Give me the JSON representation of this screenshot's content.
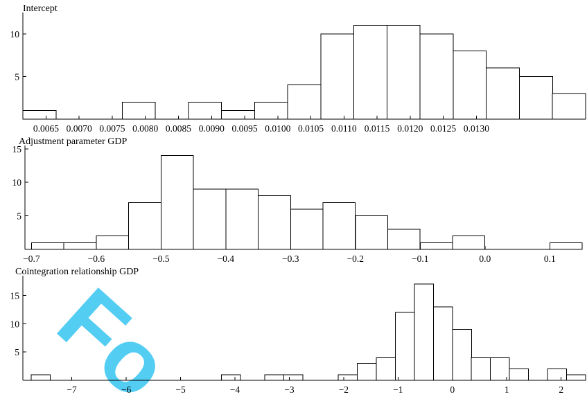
{
  "watermark": {
    "text": "Fo",
    "color": "#37c5f2"
  },
  "chart_data": [
    {
      "type": "bar",
      "title": "Intercept",
      "bins": [
        {
          "start": 0.00615,
          "end": 0.00665,
          "count": 1
        },
        {
          "start": 0.00665,
          "end": 0.00715,
          "count": 0
        },
        {
          "start": 0.00715,
          "end": 0.00765,
          "count": 0
        },
        {
          "start": 0.00765,
          "end": 0.00815,
          "count": 2
        },
        {
          "start": 0.00815,
          "end": 0.00865,
          "count": 0
        },
        {
          "start": 0.00865,
          "end": 0.00915,
          "count": 2
        },
        {
          "start": 0.00915,
          "end": 0.00965,
          "count": 1
        },
        {
          "start": 0.00965,
          "end": 0.01015,
          "count": 2
        },
        {
          "start": 0.01015,
          "end": 0.01065,
          "count": 4
        },
        {
          "start": 0.01065,
          "end": 0.01115,
          "count": 10
        },
        {
          "start": 0.01115,
          "end": 0.01165,
          "count": 11
        },
        {
          "start": 0.01165,
          "end": 0.01215,
          "count": 11
        },
        {
          "start": 0.01215,
          "end": 0.01265,
          "count": 10
        },
        {
          "start": 0.01265,
          "end": 0.01315,
          "count": 8
        },
        {
          "start": 0.01315,
          "end": 0.01365,
          "count": 6
        },
        {
          "start": 0.01365,
          "end": 0.01415,
          "count": 5
        },
        {
          "start": 0.01415,
          "end": 0.01465,
          "count": 3
        }
      ],
      "xlim": [
        0.00615,
        0.01465
      ],
      "ylim": [
        0,
        12.5
      ],
      "xticks": [
        0.0065,
        0.007,
        0.0075,
        0.008,
        0.0085,
        0.009,
        0.0095,
        0.01,
        0.0105,
        0.011,
        0.0115,
        0.012,
        0.0125,
        0.013
      ],
      "xtick_labels": [
        "0.0065",
        "0.0070",
        "0.0075",
        "0.0080",
        "0.0085",
        "0.0090",
        "0.0095",
        "0.0100",
        "0.0105",
        "0.0110",
        "0.0115",
        "0.0120",
        "0.0125",
        "0.0130"
      ],
      "yticks": [
        5,
        10
      ],
      "ytick_labels": [
        "5",
        "10"
      ]
    },
    {
      "type": "bar",
      "title": "Adjustment parameter GDP",
      "bins": [
        {
          "start": -0.7,
          "end": -0.65,
          "count": 1
        },
        {
          "start": -0.65,
          "end": -0.6,
          "count": 1
        },
        {
          "start": -0.6,
          "end": -0.55,
          "count": 2
        },
        {
          "start": -0.55,
          "end": -0.5,
          "count": 7
        },
        {
          "start": -0.5,
          "end": -0.45,
          "count": 14
        },
        {
          "start": -0.45,
          "end": -0.4,
          "count": 9
        },
        {
          "start": -0.4,
          "end": -0.35,
          "count": 9
        },
        {
          "start": -0.35,
          "end": -0.3,
          "count": 8
        },
        {
          "start": -0.3,
          "end": -0.25,
          "count": 6
        },
        {
          "start": -0.25,
          "end": -0.2,
          "count": 7
        },
        {
          "start": -0.2,
          "end": -0.15,
          "count": 5
        },
        {
          "start": -0.15,
          "end": -0.1,
          "count": 3
        },
        {
          "start": -0.1,
          "end": -0.05,
          "count": 1
        },
        {
          "start": -0.05,
          "end": 0.0,
          "count": 2
        },
        {
          "start": 0.0,
          "end": 0.05,
          "count": 0
        },
        {
          "start": 0.05,
          "end": 0.1,
          "count": 0
        },
        {
          "start": 0.1,
          "end": 0.15,
          "count": 1
        }
      ],
      "xlim": [
        -0.71,
        0.15
      ],
      "ylim": [
        0,
        15.5
      ],
      "xticks": [
        -0.7,
        -0.6,
        -0.5,
        -0.4,
        -0.3,
        -0.2,
        -0.1,
        0.0,
        0.1
      ],
      "xtick_labels": [
        "−0.7",
        "−0.6",
        "−0.5",
        "−0.4",
        "−0.3",
        "−0.2",
        "−0.1",
        "0.0",
        "0.1"
      ],
      "yticks": [
        5,
        10,
        15
      ],
      "ytick_labels": [
        "5",
        "10",
        "15"
      ]
    },
    {
      "type": "bar",
      "title": "Cointegration relationship GDP",
      "bins": [
        {
          "start": -7.75,
          "end": -7.4,
          "count": 1
        },
        {
          "start": -4.25,
          "end": -3.9,
          "count": 1
        },
        {
          "start": -3.45,
          "end": -3.1,
          "count": 1
        },
        {
          "start": -3.1,
          "end": -2.75,
          "count": 1
        },
        {
          "start": -2.1,
          "end": -1.75,
          "count": 1
        },
        {
          "start": -1.75,
          "end": -1.4,
          "count": 3
        },
        {
          "start": -1.4,
          "end": -1.05,
          "count": 4
        },
        {
          "start": -1.05,
          "end": -0.7,
          "count": 12
        },
        {
          "start": -0.7,
          "end": -0.35,
          "count": 17
        },
        {
          "start": -0.35,
          "end": 0.0,
          "count": 13
        },
        {
          "start": 0.0,
          "end": 0.35,
          "count": 9
        },
        {
          "start": 0.35,
          "end": 0.7,
          "count": 4
        },
        {
          "start": 0.7,
          "end": 1.05,
          "count": 4
        },
        {
          "start": 1.05,
          "end": 1.4,
          "count": 2
        },
        {
          "start": 1.4,
          "end": 1.75,
          "count": 0
        },
        {
          "start": 1.75,
          "end": 2.1,
          "count": 2
        },
        {
          "start": 2.1,
          "end": 2.45,
          "count": 1
        }
      ],
      "xlim": [
        -7.9,
        2.45
      ],
      "ylim": [
        0,
        18.5
      ],
      "xticks": [
        -7,
        -6,
        -5,
        -4,
        -3,
        -2,
        -1,
        0,
        1,
        2
      ],
      "xtick_labels": [
        "−7",
        "−6",
        "−5",
        "−4",
        "−3",
        "−2",
        "−1",
        "0",
        "1",
        "2"
      ],
      "yticks": [
        5,
        10,
        15
      ],
      "ytick_labels": [
        "5",
        "10",
        "15"
      ]
    }
  ]
}
